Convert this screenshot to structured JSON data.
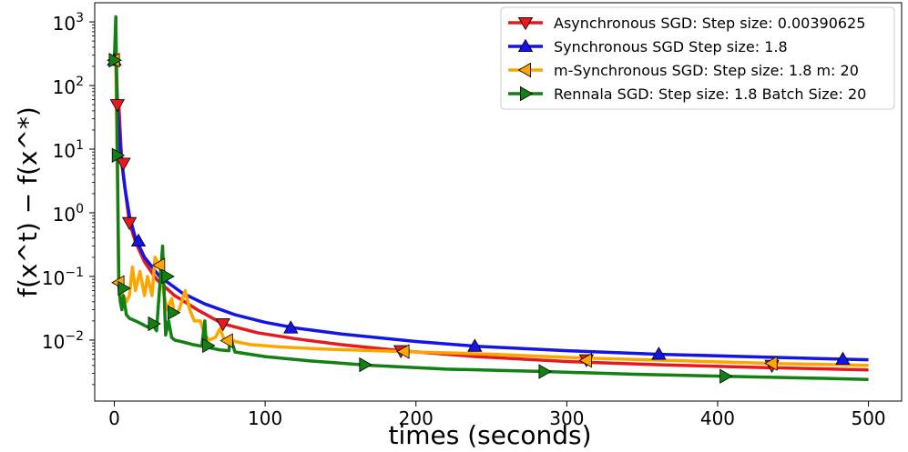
{
  "chart_data": {
    "type": "line",
    "title": "",
    "xlabel": "times (seconds)",
    "ylabel": "f(x^t) − f(x^*)",
    "xscale": "linear",
    "yscale": "log",
    "xlim": [
      -13,
      522
    ],
    "ylim": [
      0.0011,
      2000
    ],
    "xticks": [
      0,
      100,
      200,
      300,
      400,
      500
    ],
    "xtick_labels": [
      "0",
      "100",
      "200",
      "300",
      "400",
      "500"
    ],
    "yticks": [
      0.01,
      0.1,
      1,
      10,
      100,
      1000
    ],
    "ytick_labels": [
      "10^-2",
      "10^-1",
      "10^0",
      "10^1",
      "10^2",
      "10^3"
    ],
    "legend_position": "top-right",
    "series": [
      {
        "name": "Asynchronous SGD: Step size: 0.00390625",
        "color": "#e6191e",
        "marker": "triangle-down",
        "x": [
          0,
          1,
          2,
          3,
          5,
          7,
          10,
          14,
          20,
          28,
          40,
          55,
          72,
          95,
          120,
          150,
          190,
          240,
          300,
          360,
          430,
          500
        ],
        "y": [
          250,
          500,
          60,
          50,
          6,
          2.5,
          0.7,
          0.35,
          0.17,
          0.09,
          0.05,
          0.03,
          0.018,
          0.013,
          0.0105,
          0.0085,
          0.0068,
          0.0055,
          0.0046,
          0.0041,
          0.0037,
          0.0034
        ],
        "marker_x": [
          2,
          6,
          10,
          72,
          190,
          313,
          436
        ],
        "marker_y": [
          50,
          6,
          0.7,
          0.018,
          0.0068,
          0.0049,
          0.004
        ]
      },
      {
        "name": "Synchronous SGD Step size: 1.8",
        "color": "#1414e6",
        "marker": "triangle-up",
        "x": [
          0,
          1,
          2,
          4,
          7,
          10,
          14,
          20,
          30,
          45,
          60,
          80,
          100,
          120,
          150,
          200,
          240,
          300,
          360,
          430,
          500
        ],
        "y": [
          250,
          200,
          50,
          10,
          2.5,
          0.9,
          0.4,
          0.2,
          0.1,
          0.055,
          0.037,
          0.025,
          0.019,
          0.0155,
          0.0125,
          0.0095,
          0.008,
          0.0068,
          0.006,
          0.0054,
          0.0049
        ],
        "marker_x": [
          0,
          16,
          117,
          239,
          361,
          483
        ],
        "marker_y": [
          250,
          0.36,
          0.0155,
          0.008,
          0.006,
          0.005
        ]
      },
      {
        "name": "m-Synchronous  SGD: Step size: 1.8 m: 20",
        "color": "#ffa500",
        "marker": "triangle-left",
        "x": [
          0,
          1,
          2,
          3,
          4,
          6,
          8,
          10,
          12,
          14,
          17,
          20,
          22,
          25,
          27,
          30,
          33,
          35,
          38,
          40,
          43,
          47,
          50,
          53,
          57,
          60,
          63,
          67,
          70,
          73,
          76,
          80,
          90,
          110,
          140,
          190,
          250,
          313,
          380,
          436,
          500
        ],
        "y": [
          250,
          230,
          5,
          0.08,
          0.06,
          0.05,
          0.04,
          0.05,
          0.14,
          0.06,
          0.12,
          0.05,
          0.1,
          0.05,
          0.2,
          0.15,
          0.05,
          0.03,
          0.045,
          0.025,
          0.03,
          0.06,
          0.03,
          0.02,
          0.02,
          0.012,
          0.01,
          0.011,
          0.015,
          0.01,
          0.011,
          0.0095,
          0.0085,
          0.0078,
          0.0072,
          0.0066,
          0.006,
          0.0052,
          0.0047,
          0.0043,
          0.004
        ],
        "marker_x": [
          0,
          3,
          30,
          75,
          192,
          313,
          436
        ],
        "marker_y": [
          250,
          0.08,
          0.15,
          0.0098,
          0.0066,
          0.0048,
          0.0043
        ]
      },
      {
        "name": "Rennala SGD: Step size: 1.8 Batch Size: 20",
        "color": "#128012",
        "marker": "triangle-right",
        "x": [
          0,
          1,
          2,
          3,
          4,
          5,
          6,
          8,
          10,
          14,
          18,
          22,
          25,
          28,
          32,
          34,
          36,
          38,
          40,
          44,
          48,
          52,
          58,
          60,
          61,
          64,
          70,
          76,
          77,
          80,
          100,
          130,
          170,
          220,
          285,
          345,
          405,
          470,
          500
        ],
        "y": [
          250,
          1200,
          8,
          0.07,
          0.04,
          0.03,
          0.05,
          0.025,
          0.022,
          0.02,
          0.018,
          0.016,
          0.018,
          0.014,
          0.3,
          0.012,
          0.02,
          0.011,
          0.01,
          0.0095,
          0.009,
          0.0085,
          0.008,
          0.02,
          0.008,
          0.0075,
          0.007,
          0.0068,
          0.011,
          0.0065,
          0.0055,
          0.0047,
          0.004,
          0.0035,
          0.0032,
          0.0029,
          0.0027,
          0.0025,
          0.0024
        ],
        "marker_x": [
          0,
          2,
          6,
          26,
          35,
          39,
          62,
          166,
          285,
          405
        ],
        "marker_y": [
          250,
          8,
          0.065,
          0.018,
          0.1,
          0.027,
          0.0082,
          0.0041,
          0.0032,
          0.0027
        ]
      }
    ]
  }
}
